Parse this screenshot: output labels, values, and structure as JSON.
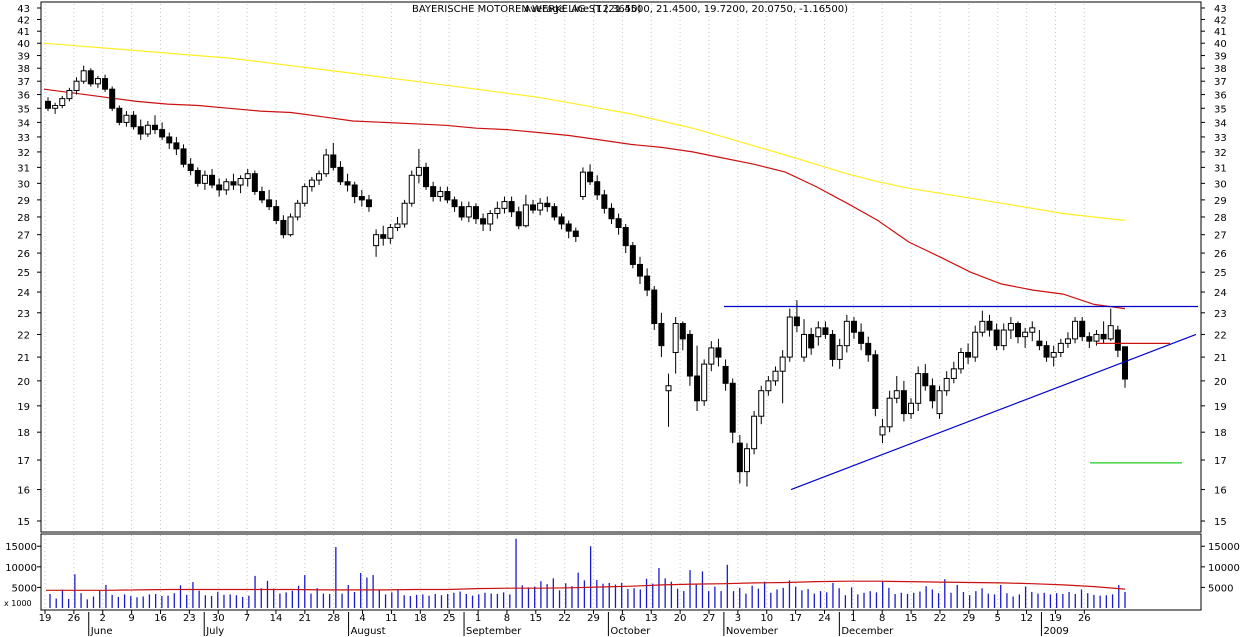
{
  "chart_data": [
    {
      "type": "candlestick",
      "title": "BAYERISCHE MOTOREN WERKE AG ST (21.4500, 21.4500, 19.7200, 20.0750, -1.16500)",
      "overlay_text": "Average Line (12.3650)",
      "price_axis": {
        "min": 15,
        "max": 43,
        "scale": "log",
        "ticks": [
          15,
          16,
          17,
          18,
          19,
          20,
          21,
          22,
          23,
          24,
          25,
          26,
          27,
          28,
          29,
          30,
          31,
          32,
          33,
          34,
          35,
          36,
          37,
          38,
          39,
          40,
          41,
          42,
          43
        ]
      },
      "date_ticks": [
        "19",
        "26",
        "2",
        "9",
        "16",
        "23",
        "30",
        "7",
        "14",
        "21",
        "28",
        "4",
        "11",
        "18",
        "25",
        "1",
        "8",
        "15",
        "22",
        "29",
        "6",
        "13",
        "20",
        "27",
        "3",
        "10",
        "17",
        "24",
        "1",
        "8",
        "15",
        "22",
        "29",
        "5",
        "12",
        "19",
        "26"
      ],
      "month_labels": [
        "June",
        "July",
        "August",
        "September",
        "October",
        "November",
        "December",
        "2009"
      ],
      "ohlc": [
        [
          35.5,
          35.8,
          34.8,
          35.0
        ],
        [
          35.0,
          35.4,
          34.6,
          35.2
        ],
        [
          35.2,
          35.9,
          35.0,
          35.7
        ],
        [
          35.7,
          36.5,
          35.5,
          36.3
        ],
        [
          36.3,
          37.3,
          36.0,
          37.0
        ],
        [
          37.0,
          38.2,
          36.8,
          37.8
        ],
        [
          37.8,
          38.0,
          36.6,
          36.8
        ],
        [
          36.8,
          37.4,
          36.5,
          37.2
        ],
        [
          37.2,
          37.5,
          36.2,
          36.4
        ],
        [
          36.4,
          36.6,
          34.8,
          35.0
        ],
        [
          35.0,
          35.2,
          33.8,
          34.0
        ],
        [
          34.0,
          34.8,
          33.7,
          34.5
        ],
        [
          34.5,
          34.8,
          33.5,
          33.7
        ],
        [
          33.7,
          34.2,
          32.8,
          33.2
        ],
        [
          33.2,
          34.1,
          33.0,
          33.8
        ],
        [
          33.8,
          34.5,
          33.2,
          33.5
        ],
        [
          33.5,
          34.0,
          32.8,
          33.0
        ],
        [
          33.0,
          33.3,
          32.2,
          32.6
        ],
        [
          32.6,
          33.0,
          31.8,
          32.2
        ],
        [
          32.2,
          32.5,
          31.0,
          31.2
        ],
        [
          31.2,
          31.6,
          30.5,
          30.8
        ],
        [
          30.8,
          31.0,
          29.8,
          30.0
        ],
        [
          30.0,
          30.8,
          29.6,
          30.5
        ],
        [
          30.5,
          30.9,
          29.7,
          29.9
        ],
        [
          29.9,
          30.3,
          29.2,
          29.6
        ],
        [
          29.6,
          30.3,
          29.3,
          30.1
        ],
        [
          30.1,
          30.6,
          29.6,
          29.9
        ],
        [
          29.9,
          30.5,
          29.4,
          30.3
        ],
        [
          30.3,
          30.9,
          29.8,
          30.6
        ],
        [
          30.6,
          30.8,
          29.3,
          29.5
        ],
        [
          29.5,
          29.8,
          28.8,
          29.0
        ],
        [
          29.0,
          29.6,
          28.4,
          28.6
        ],
        [
          28.6,
          29.0,
          27.6,
          27.8
        ],
        [
          27.8,
          28.1,
          26.8,
          27.0
        ],
        [
          27.0,
          28.2,
          26.9,
          28.0
        ],
        [
          28.0,
          29.0,
          27.8,
          28.8
        ],
        [
          28.8,
          30.0,
          28.6,
          29.8
        ],
        [
          29.8,
          30.4,
          29.5,
          30.2
        ],
        [
          30.2,
          30.8,
          29.9,
          30.6
        ],
        [
          30.6,
          32.2,
          30.4,
          31.8
        ],
        [
          31.8,
          32.6,
          30.8,
          31.0
        ],
        [
          31.0,
          31.4,
          29.9,
          30.1
        ],
        [
          30.1,
          30.6,
          29.5,
          29.9
        ],
        [
          29.9,
          30.1,
          28.8,
          29.2
        ],
        [
          29.2,
          29.6,
          28.6,
          29.0
        ],
        [
          29.0,
          29.3,
          28.3,
          28.6
        ],
        [
          26.4,
          27.3,
          25.8,
          27.0
        ],
        [
          27.0,
          27.5,
          26.4,
          26.8
        ],
        [
          26.8,
          27.6,
          26.5,
          27.4
        ],
        [
          27.4,
          28.0,
          27.2,
          27.6
        ],
        [
          27.6,
          29.0,
          27.4,
          28.8
        ],
        [
          28.8,
          30.8,
          28.6,
          30.5
        ],
        [
          30.5,
          32.2,
          30.0,
          31.0
        ],
        [
          31.0,
          31.3,
          29.6,
          29.8
        ],
        [
          29.8,
          30.1,
          28.9,
          29.2
        ],
        [
          29.2,
          29.8,
          28.9,
          29.5
        ],
        [
          29.5,
          29.8,
          28.8,
          29.0
        ],
        [
          29.0,
          29.2,
          28.3,
          28.6
        ],
        [
          28.6,
          28.9,
          27.8,
          28.0
        ],
        [
          28.0,
          28.9,
          27.7,
          28.6
        ],
        [
          28.6,
          28.8,
          27.6,
          27.9
        ],
        [
          27.9,
          28.2,
          27.2,
          27.6
        ],
        [
          27.6,
          28.4,
          27.2,
          28.2
        ],
        [
          28.2,
          28.9,
          27.9,
          28.5
        ],
        [
          28.5,
          29.2,
          28.2,
          28.9
        ],
        [
          28.9,
          29.2,
          28.0,
          28.3
        ],
        [
          28.3,
          28.6,
          27.3,
          27.5
        ],
        [
          27.5,
          29.3,
          27.4,
          28.7
        ],
        [
          28.7,
          29.0,
          28.2,
          28.4
        ],
        [
          28.4,
          29.1,
          28.1,
          28.8
        ],
        [
          28.8,
          29.2,
          28.3,
          28.6
        ],
        [
          28.6,
          28.8,
          27.8,
          28.0
        ],
        [
          28.0,
          28.2,
          27.3,
          27.6
        ],
        [
          27.6,
          27.8,
          26.8,
          27.2
        ],
        [
          27.2,
          27.4,
          26.6,
          26.9
        ],
        [
          29.2,
          31.0,
          29.0,
          30.7
        ],
        [
          30.7,
          31.2,
          29.9,
          30.1
        ],
        [
          30.1,
          30.5,
          29.0,
          29.3
        ],
        [
          29.3,
          29.6,
          28.2,
          28.5
        ],
        [
          28.5,
          28.8,
          27.6,
          27.9
        ],
        [
          27.9,
          28.2,
          27.0,
          27.4
        ],
        [
          27.4,
          27.6,
          26.0,
          26.4
        ],
        [
          26.4,
          26.6,
          25.2,
          25.4
        ],
        [
          25.4,
          25.8,
          24.4,
          24.8
        ],
        [
          24.8,
          25.2,
          23.8,
          24.1
        ],
        [
          24.1,
          24.3,
          22.2,
          22.5
        ],
        [
          22.5,
          23.0,
          21.0,
          21.5
        ],
        [
          19.6,
          20.3,
          18.2,
          19.8
        ],
        [
          21.2,
          22.8,
          20.3,
          22.5
        ],
        [
          22.5,
          22.6,
          21.3,
          21.8
        ],
        [
          22.0,
          22.2,
          19.8,
          20.2
        ],
        [
          20.2,
          21.5,
          18.8,
          19.2
        ],
        [
          19.2,
          20.9,
          19.0,
          20.7
        ],
        [
          20.7,
          21.7,
          20.4,
          21.4
        ],
        [
          21.4,
          21.8,
          20.6,
          21.0
        ],
        [
          20.6,
          20.9,
          19.6,
          19.9
        ],
        [
          19.9,
          20.1,
          17.6,
          18.0
        ],
        [
          17.6,
          17.9,
          16.2,
          16.6
        ],
        [
          16.6,
          17.6,
          16.1,
          17.4
        ],
        [
          17.4,
          18.8,
          17.2,
          18.6
        ],
        [
          18.6,
          19.8,
          18.3,
          19.6
        ],
        [
          19.6,
          20.2,
          19.4,
          20.0
        ],
        [
          20.0,
          20.6,
          19.8,
          20.4
        ],
        [
          20.4,
          21.3,
          19.1,
          21.0
        ],
        [
          21.0,
          23.2,
          20.8,
          22.8
        ],
        [
          22.8,
          23.6,
          22.1,
          22.4
        ],
        [
          21.0,
          22.7,
          20.8,
          22.0
        ],
        [
          22.0,
          22.3,
          21.1,
          21.4
        ],
        [
          21.9,
          22.6,
          21.5,
          22.3
        ],
        [
          22.3,
          22.6,
          21.8,
          22.0
        ],
        [
          22.0,
          22.2,
          20.6,
          20.9
        ],
        [
          20.9,
          21.8,
          20.5,
          21.5
        ],
        [
          21.5,
          22.9,
          21.2,
          22.6
        ],
        [
          22.6,
          22.8,
          21.8,
          22.1
        ],
        [
          22.1,
          22.5,
          21.3,
          21.6
        ],
        [
          21.6,
          21.9,
          20.8,
          21.1
        ],
        [
          21.1,
          21.3,
          18.6,
          18.9
        ],
        [
          17.9,
          18.5,
          17.6,
          18.2
        ],
        [
          18.2,
          19.6,
          18.0,
          19.3
        ],
        [
          19.3,
          20.2,
          19.1,
          19.6
        ],
        [
          19.6,
          20.0,
          18.4,
          18.7
        ],
        [
          18.7,
          19.3,
          18.5,
          19.1
        ],
        [
          19.1,
          20.6,
          18.8,
          20.3
        ],
        [
          20.3,
          20.7,
          19.6,
          19.8
        ],
        [
          19.8,
          20.1,
          18.9,
          19.2
        ],
        [
          18.7,
          19.8,
          18.5,
          19.6
        ],
        [
          19.6,
          20.4,
          19.4,
          20.1
        ],
        [
          20.1,
          20.8,
          19.9,
          20.5
        ],
        [
          20.5,
          21.4,
          20.3,
          21.2
        ],
        [
          21.2,
          21.6,
          20.7,
          21.0
        ],
        [
          21.0,
          22.4,
          20.8,
          22.1
        ],
        [
          22.1,
          23.1,
          21.9,
          22.6
        ],
        [
          22.6,
          22.9,
          21.9,
          22.2
        ],
        [
          22.2,
          22.5,
          21.3,
          21.5
        ],
        [
          21.5,
          22.5,
          21.3,
          22.2
        ],
        [
          22.2,
          22.8,
          21.8,
          22.5
        ],
        [
          22.5,
          22.6,
          21.6,
          21.9
        ],
        [
          21.9,
          22.3,
          21.4,
          22.1
        ],
        [
          22.1,
          22.6,
          21.7,
          22.3
        ],
        [
          21.7,
          22.2,
          21.3,
          21.5
        ],
        [
          21.5,
          21.7,
          20.8,
          21.0
        ],
        [
          21.0,
          21.5,
          20.6,
          21.2
        ],
        [
          21.2,
          21.8,
          21.0,
          21.6
        ],
        [
          21.6,
          22.1,
          21.4,
          21.8
        ],
        [
          21.8,
          22.8,
          21.6,
          22.6
        ],
        [
          22.6,
          22.8,
          21.7,
          21.9
        ],
        [
          21.9,
          22.1,
          21.4,
          21.7
        ],
        [
          21.7,
          22.2,
          21.5,
          22.0
        ],
        [
          22.0,
          22.6,
          21.6,
          21.8
        ],
        [
          21.8,
          23.2,
          21.7,
          22.4
        ],
        [
          22.2,
          22.4,
          21.0,
          21.3
        ],
        [
          21.45,
          21.45,
          19.72,
          20.075
        ]
      ],
      "overlays": {
        "moving_average_red": [
          36.4,
          36.1,
          35.8,
          35.5,
          35.3,
          35.2,
          35.0,
          34.8,
          34.7,
          34.4,
          34.1,
          34.0,
          33.9,
          33.8,
          33.6,
          33.5,
          33.3,
          33.1,
          32.8,
          32.5,
          32.3,
          32.0,
          31.6,
          31.2,
          30.7,
          29.8,
          28.8,
          27.8,
          26.6,
          25.8,
          25.0,
          24.4,
          24.1,
          23.9,
          23.4,
          23.2
        ],
        "moving_average_yellow": [
          40.0,
          39.8,
          39.6,
          39.4,
          39.2,
          39.0,
          38.8,
          38.5,
          38.2,
          37.9,
          37.6,
          37.3,
          37.0,
          36.7,
          36.4,
          36.1,
          35.8,
          35.4,
          35.0,
          34.6,
          34.1,
          33.6,
          33.0,
          32.4,
          31.8,
          31.2,
          30.6,
          30.1,
          29.7,
          29.4,
          29.1,
          28.8,
          28.5,
          28.2,
          28.0,
          27.8
        ],
        "resistance_line": 23.3,
        "support_line": {
          "start": 16.0,
          "end": 22.0
        },
        "short_red_line": 21.6,
        "green_target_line": 16.9
      }
    },
    {
      "type": "bar",
      "title": "Volume",
      "unit_label": "x 1000",
      "y_ticks": [
        5000,
        10000,
        15000
      ],
      "volume": [
        3400,
        2300,
        4500,
        2200,
        8200,
        3600,
        2100,
        2800,
        4200,
        5600,
        3200,
        2700,
        3300,
        2900,
        2600,
        2800,
        3300,
        3400,
        2900,
        3000,
        3600,
        5500,
        3200,
        6300,
        4200,
        3100,
        2900,
        3900,
        3200,
        3300,
        3100,
        2700,
        3000,
        7800,
        4800,
        6600,
        4700,
        3500,
        3800,
        4200,
        5400,
        8000,
        3500,
        4800,
        3500,
        3400,
        14800,
        3500,
        5600,
        3900,
        8500,
        7400,
        8000,
        4300,
        3300,
        3800,
        4500,
        3100,
        2900,
        3200,
        3300,
        3000,
        3400,
        3100,
        3400,
        3700,
        4000,
        3400,
        3000,
        3300,
        3700,
        3500,
        3400,
        3800,
        3300,
        16800,
        5500,
        5000,
        5200,
        6500,
        5800,
        7200,
        4300,
        6000,
        5300,
        8600,
        6700,
        15000,
        6800,
        5900,
        6100,
        5700,
        6100,
        4600,
        4800,
        4500,
        7100,
        5900,
        9700,
        7200,
        6400,
        4700,
        4100,
        9200,
        5700,
        8900,
        4100,
        5200,
        4100,
        10500,
        4100,
        4900,
        3500,
        5400,
        4700,
        6400,
        3700,
        4500,
        4900,
        6700,
        5200,
        4300,
        4600,
        3500,
        4100,
        3800,
        6100,
        4800,
        3100,
        5000,
        3300,
        3700,
        4100,
        3800,
        6500,
        4900,
        3400,
        3700,
        3400,
        3700,
        4000,
        5300,
        4500,
        3600,
        7000,
        3700,
        5600,
        3900,
        3100,
        4100,
        4800,
        3500,
        3300,
        5600,
        3600,
        2800,
        3300,
        5200,
        3900,
        3500,
        3700,
        3300,
        3600,
        3400,
        3900,
        3400,
        4500,
        3600,
        3200,
        3000,
        3100,
        3300,
        5600,
        3900
      ],
      "volume_average": [
        4300,
        4300,
        4300,
        4400,
        4500,
        4500,
        4500,
        4500,
        4500,
        4400,
        4400,
        4400,
        4500,
        4500,
        4700,
        4800,
        4800,
        4900,
        5100,
        5300,
        5600,
        5800,
        5900,
        6100,
        6200,
        6400,
        6500,
        6500,
        6400,
        6300,
        6200,
        6100,
        5900,
        5600,
        5200,
        4600
      ]
    }
  ]
}
